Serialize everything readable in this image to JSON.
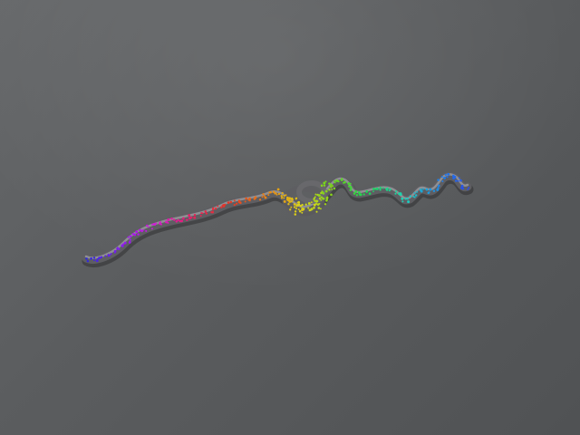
{
  "viewer": {
    "background_color": "#5a5c5e",
    "model": {
      "name": "",
      "representation": "tube-with-atoms",
      "tube_color": "#6e6e72",
      "gradient_colors": [
        "#2b2bd6",
        "#8a1cf0",
        "#d21ad8",
        "#e8205a",
        "#e23a24",
        "#e88a14",
        "#d8d41a",
        "#6ad41c",
        "#1cd454",
        "#1cd4b8",
        "#1c8ae8",
        "#2b4be8"
      ]
    }
  }
}
